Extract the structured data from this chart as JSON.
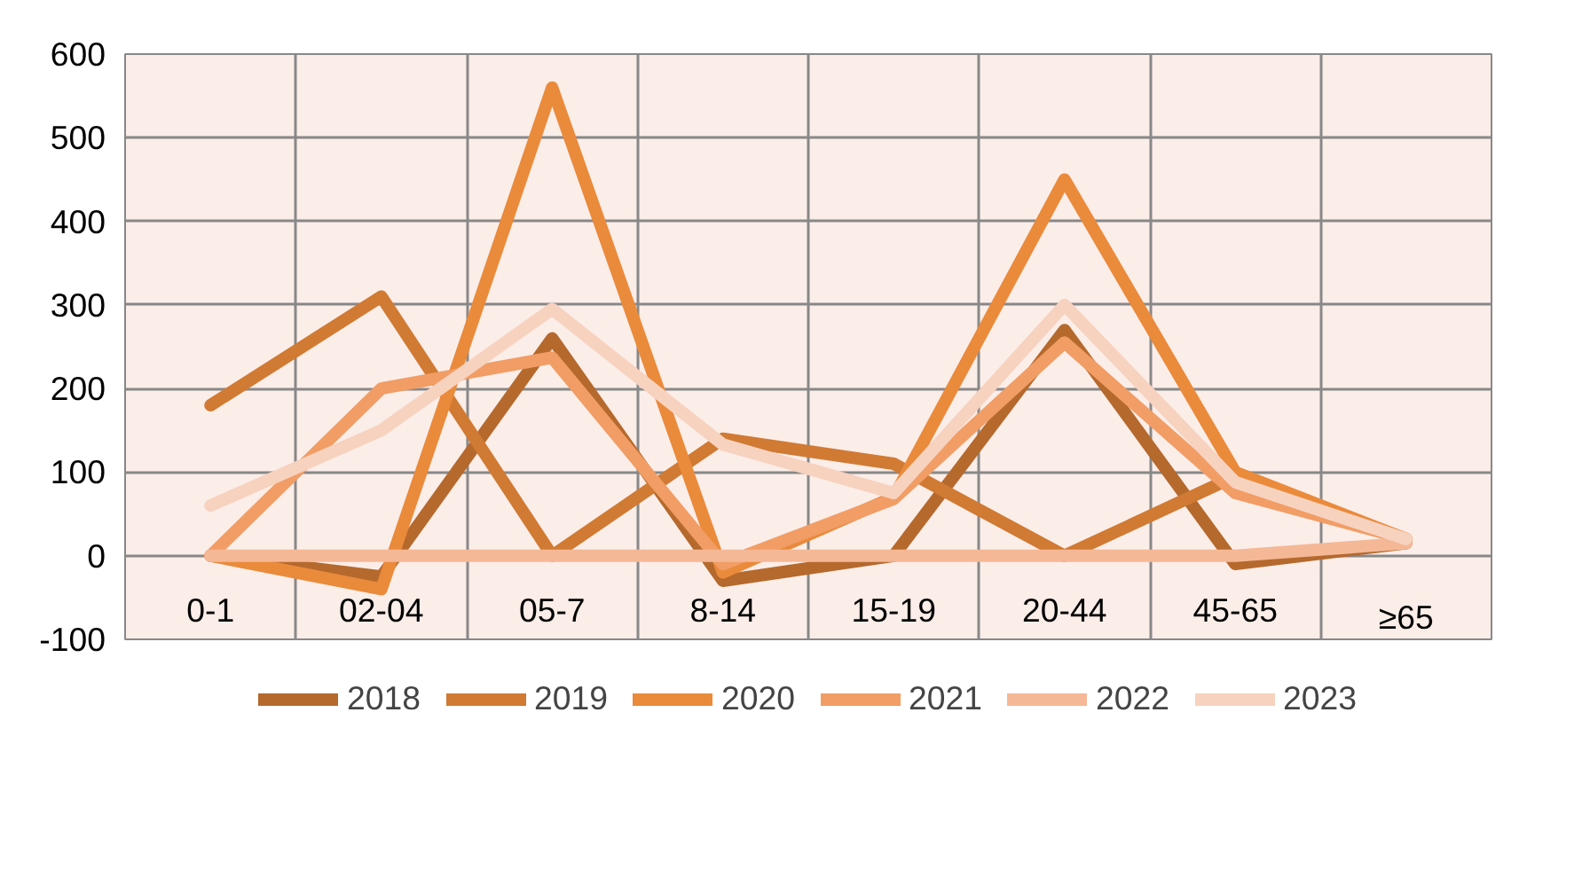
{
  "chart_data": {
    "type": "line",
    "categories": [
      "0-1",
      "02-04",
      "05-7",
      "8-14",
      "15-19",
      "20-44",
      "45-65",
      "≥65"
    ],
    "series": [
      {
        "name": "2018",
        "color": "#b5692d",
        "values": [
          0,
          -25,
          260,
          -30,
          0,
          270,
          -10,
          15
        ]
      },
      {
        "name": "2019",
        "color": "#d07a33",
        "values": [
          180,
          310,
          0,
          140,
          110,
          0,
          95,
          20
        ]
      },
      {
        "name": "2020",
        "color": "#ea8a3b",
        "values": [
          0,
          -40,
          560,
          -20,
          70,
          450,
          100,
          20
        ]
      },
      {
        "name": "2021",
        "color": "#f19d65",
        "values": [
          0,
          200,
          237,
          -10,
          68,
          255,
          75,
          20
        ]
      },
      {
        "name": "2022",
        "color": "#f5b896",
        "values": [
          0,
          0,
          0,
          0,
          0,
          0,
          0,
          15
        ]
      },
      {
        "name": "2023",
        "color": "#f7d2bf",
        "values": [
          60,
          150,
          295,
          133,
          75,
          300,
          88,
          20
        ]
      }
    ],
    "ylim": [
      -100,
      600
    ],
    "yticks": [
      -100,
      0,
      100,
      200,
      300,
      400,
      500,
      600
    ],
    "grid": true,
    "legend": "bottom",
    "marker": "none",
    "line_style": "solid"
  }
}
